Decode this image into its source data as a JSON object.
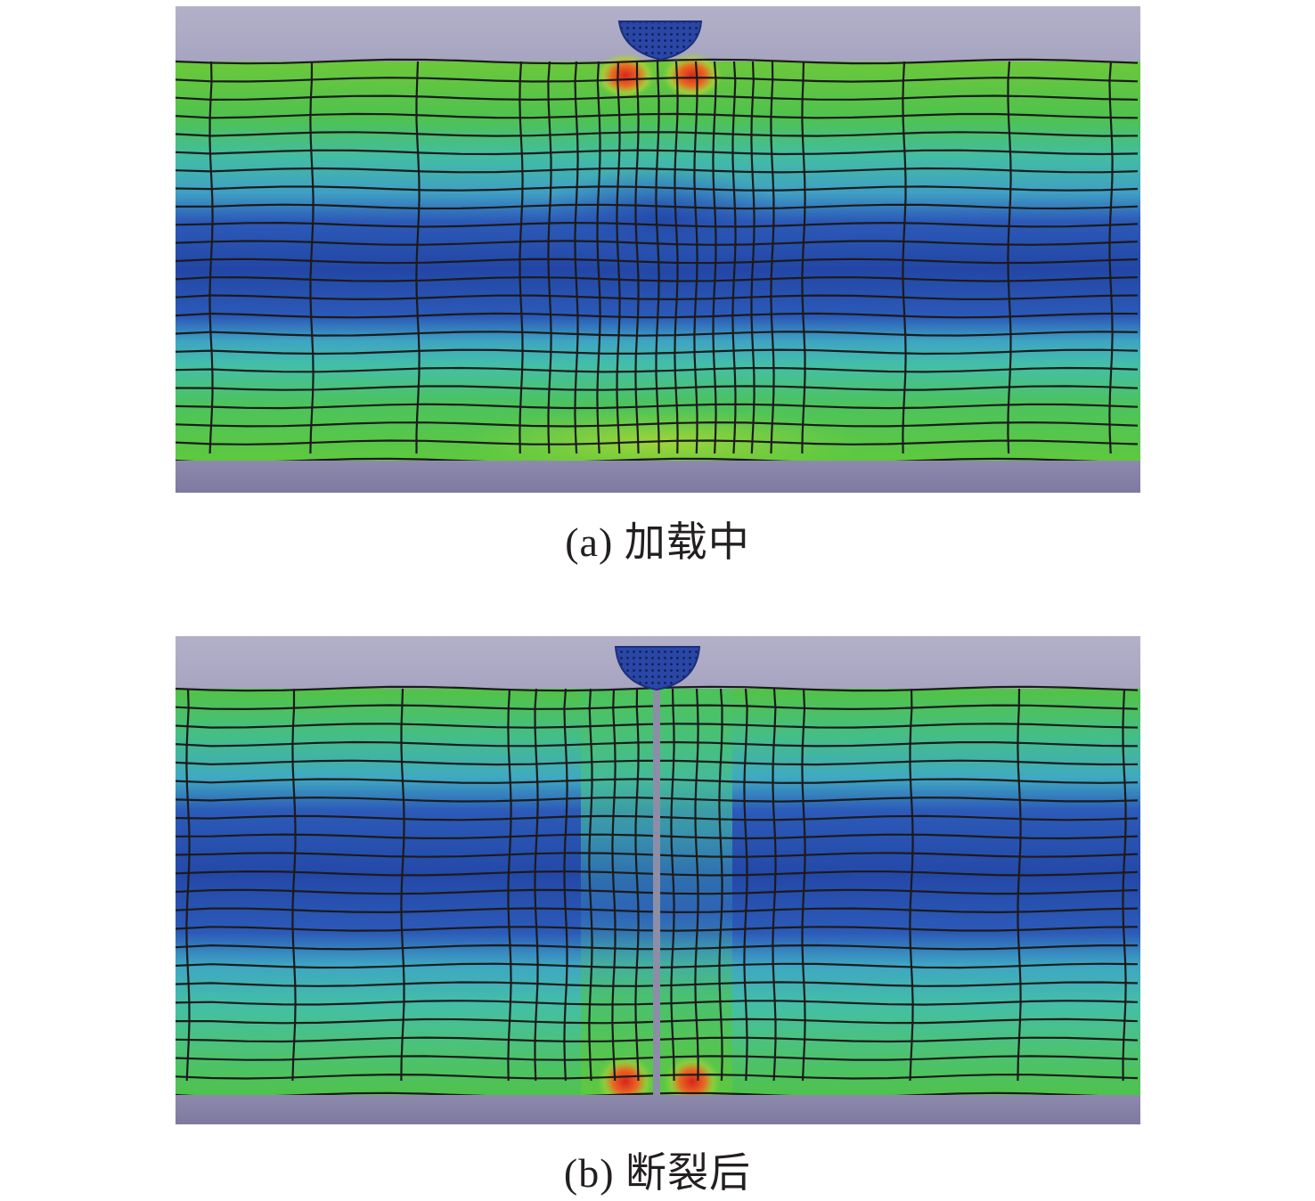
{
  "figure": {
    "panels": [
      {
        "id": "a",
        "caption": "(a) 加载中",
        "state": "loading"
      },
      {
        "id": "b",
        "caption": "(b) 断裂后",
        "state": "fractured"
      }
    ]
  },
  "colors": {
    "platen_top": "#aeacc7",
    "platen_bottom": "#8682a6",
    "indenter": "#2a46a6",
    "mesh_line": "#1b1b1b",
    "crack": "#8b8ea6",
    "contour_low": "#2c57b6",
    "contour_low_mid": "#41bcc0",
    "contour_mid": "#4cc25a",
    "contour_high": "#8fd23a",
    "contour_peak": "#d9241c"
  }
}
